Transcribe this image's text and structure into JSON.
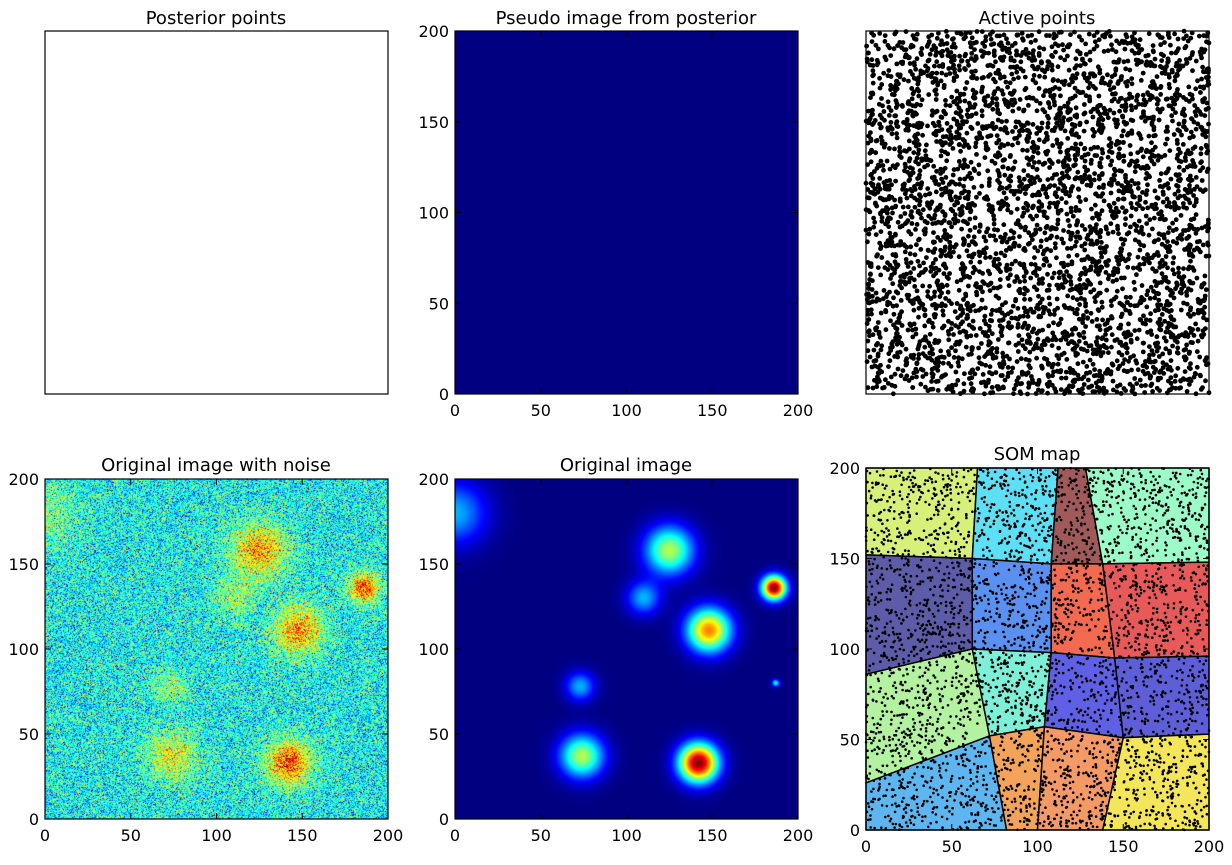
{
  "figure": {
    "panels": [
      {
        "key": "posterior",
        "title": "Posterior points"
      },
      {
        "key": "pseudo",
        "title": "Pseudo image from posterior"
      },
      {
        "key": "active",
        "title": "Active points"
      },
      {
        "key": "noise",
        "title": "Original image with noise"
      },
      {
        "key": "original",
        "title": "Original image"
      },
      {
        "key": "som",
        "title": "SOM map"
      }
    ]
  },
  "chart_data": [
    {
      "panel": "posterior",
      "type": "scatter",
      "title": "Posterior points",
      "xlabel": "",
      "ylabel": "",
      "axes_ticks": false,
      "points": []
    },
    {
      "panel": "pseudo",
      "type": "heatmap",
      "title": "Pseudo image from posterior",
      "xlabel": "",
      "ylabel": "",
      "xlim": [
        0,
        200
      ],
      "ylim": [
        0,
        200
      ],
      "xticks": [
        0,
        50,
        100,
        150,
        200
      ],
      "yticks": [
        0,
        50,
        100,
        150,
        200
      ],
      "colormap": "jet",
      "uniform_value": "min",
      "fill_color": "#000080"
    },
    {
      "panel": "active",
      "type": "scatter",
      "title": "Active points",
      "xlabel": "",
      "ylabel": "",
      "axes_ticks": false,
      "xlim": [
        0,
        200
      ],
      "ylim": [
        0,
        200
      ],
      "n_points": 4000,
      "distribution": "uniform",
      "marker_color": "#000000"
    },
    {
      "panel": "noise",
      "type": "heatmap",
      "title": "Original image with noise",
      "xlabel": "",
      "ylabel": "",
      "xlim": [
        0,
        200
      ],
      "ylim": [
        0,
        200
      ],
      "xticks": [
        0,
        50,
        100,
        150,
        200
      ],
      "yticks": [
        0,
        50,
        100,
        150,
        200
      ],
      "colormap": "jet",
      "background_level": 0.38,
      "noise_level": 0.12,
      "sources": [
        {
          "x": 0,
          "y": 180,
          "amp": 0.12,
          "r": 14
        },
        {
          "x": 125,
          "y": 158,
          "amp": 0.35,
          "r": 11
        },
        {
          "x": 110,
          "y": 130,
          "amp": 0.15,
          "r": 8
        },
        {
          "x": 148,
          "y": 111,
          "amp": 0.35,
          "r": 10
        },
        {
          "x": 186,
          "y": 136,
          "amp": 0.45,
          "r": 6
        },
        {
          "x": 73,
          "y": 78,
          "amp": 0.15,
          "r": 7
        },
        {
          "x": 187,
          "y": 80,
          "amp": 0.08,
          "r": 2
        },
        {
          "x": 74,
          "y": 37,
          "amp": 0.25,
          "r": 10
        },
        {
          "x": 142,
          "y": 33,
          "amp": 0.45,
          "r": 9
        }
      ]
    },
    {
      "panel": "original",
      "type": "heatmap",
      "title": "Original image",
      "xlabel": "",
      "ylabel": "",
      "xlim": [
        0,
        200
      ],
      "ylim": [
        0,
        200
      ],
      "xticks": [
        0,
        50,
        100,
        150,
        200
      ],
      "yticks": [
        0,
        50,
        100,
        150,
        200
      ],
      "colormap": "jet",
      "sources": [
        {
          "x": 0,
          "y": 180,
          "amp": 0.3,
          "r": 13
        },
        {
          "x": 125,
          "y": 158,
          "amp": 0.55,
          "r": 10
        },
        {
          "x": 110,
          "y": 130,
          "amp": 0.3,
          "r": 7
        },
        {
          "x": 148,
          "y": 111,
          "amp": 0.75,
          "r": 9
        },
        {
          "x": 186,
          "y": 136,
          "amp": 1.0,
          "r": 5
        },
        {
          "x": 73,
          "y": 78,
          "amp": 0.3,
          "r": 6
        },
        {
          "x": 187,
          "y": 80,
          "amp": 0.4,
          "r": 1.5
        },
        {
          "x": 74,
          "y": 37,
          "amp": 0.55,
          "r": 9
        },
        {
          "x": 142,
          "y": 33,
          "amp": 1.0,
          "r": 8
        }
      ]
    },
    {
      "panel": "som",
      "type": "scatter",
      "title": "SOM map",
      "xlabel": "",
      "ylabel": "",
      "xlim": [
        0,
        200
      ],
      "ylim": [
        0,
        200
      ],
      "xticks": [
        0,
        50,
        100,
        150,
        200
      ],
      "yticks": [
        0,
        50,
        100,
        150,
        200
      ],
      "n_points": 4000,
      "marker_color": "#000000",
      "regions": [
        {
          "color": "#d7f07a",
          "polygon": [
            [
              0,
              200
            ],
            [
              65,
              200
            ],
            [
              62,
              150
            ],
            [
              0,
              152
            ]
          ]
        },
        {
          "color": "#5de0f5",
          "polygon": [
            [
              65,
              200
            ],
            [
              112,
              200
            ],
            [
              108,
              147
            ],
            [
              62,
              150
            ]
          ]
        },
        {
          "color": "#a05a5a",
          "polygon": [
            [
              112,
              200
            ],
            [
              128,
              200
            ],
            [
              138,
              147
            ],
            [
              108,
              147
            ]
          ]
        },
        {
          "color": "#9cfcc8",
          "polygon": [
            [
              128,
              200
            ],
            [
              200,
              200
            ],
            [
              200,
              148
            ],
            [
              138,
              147
            ]
          ]
        },
        {
          "color": "#5c5ca8",
          "polygon": [
            [
              0,
              152
            ],
            [
              62,
              150
            ],
            [
              62,
              100
            ],
            [
              0,
              86
            ]
          ]
        },
        {
          "color": "#5a90f0",
          "polygon": [
            [
              62,
              150
            ],
            [
              108,
              147
            ],
            [
              108,
              98
            ],
            [
              62,
              100
            ]
          ]
        },
        {
          "color": "#f46a50",
          "polygon": [
            [
              108,
              147
            ],
            [
              138,
              147
            ],
            [
              145,
              95
            ],
            [
              108,
              98
            ]
          ]
        },
        {
          "color": "#e85a5a",
          "polygon": [
            [
              138,
              147
            ],
            [
              200,
              148
            ],
            [
              200,
              96
            ],
            [
              145,
              95
            ]
          ]
        },
        {
          "color": "#b2f2a0",
          "polygon": [
            [
              0,
              86
            ],
            [
              62,
              100
            ],
            [
              72,
              52
            ],
            [
              0,
              26
            ]
          ]
        },
        {
          "color": "#7ef0d8",
          "polygon": [
            [
              62,
              100
            ],
            [
              108,
              98
            ],
            [
              104,
              57
            ],
            [
              72,
              52
            ]
          ]
        },
        {
          "color": "#6060e6",
          "polygon": [
            [
              108,
              98
            ],
            [
              145,
              95
            ],
            [
              150,
              51
            ],
            [
              104,
              57
            ]
          ]
        },
        {
          "color": "#5e5ed8",
          "polygon": [
            [
              145,
              95
            ],
            [
              200,
              96
            ],
            [
              200,
              53
            ],
            [
              150,
              51
            ]
          ]
        },
        {
          "color": "#5db6f0",
          "polygon": [
            [
              0,
              26
            ],
            [
              72,
              52
            ],
            [
              82,
              0
            ],
            [
              0,
              0
            ]
          ]
        },
        {
          "color": "#f4a35a",
          "polygon": [
            [
              72,
              52
            ],
            [
              104,
              57
            ],
            [
              100,
              0
            ],
            [
              82,
              0
            ]
          ]
        },
        {
          "color": "#f49a66",
          "polygon": [
            [
              104,
              57
            ],
            [
              150,
              51
            ],
            [
              138,
              0
            ],
            [
              100,
              0
            ]
          ]
        },
        {
          "color": "#f4e65a",
          "polygon": [
            [
              150,
              51
            ],
            [
              200,
              53
            ],
            [
              200,
              0
            ],
            [
              138,
              0
            ]
          ]
        }
      ]
    }
  ]
}
